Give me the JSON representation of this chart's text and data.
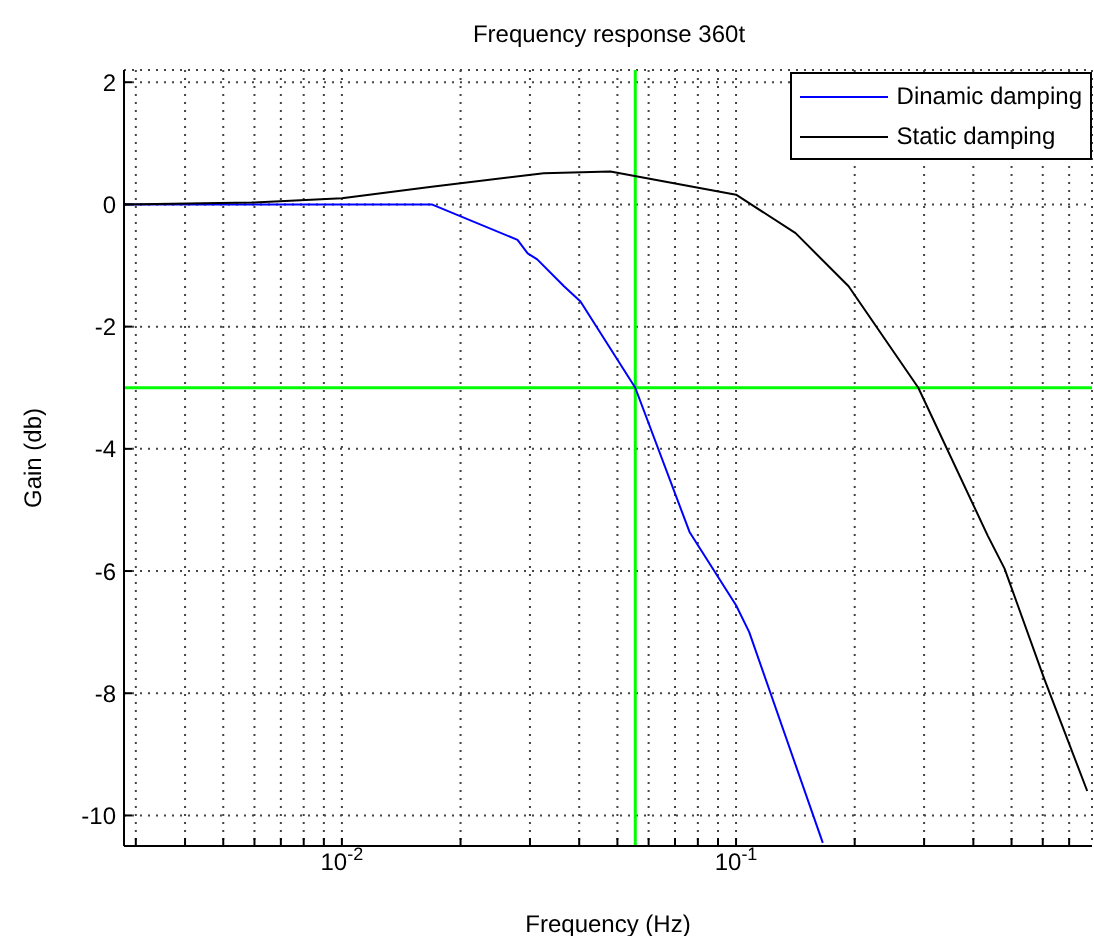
{
  "chart_data": {
    "type": "line",
    "title": "Frequency response 360t",
    "xlabel": "Frequency (Hz)",
    "ylabel": "Gain (db)",
    "log": "x",
    "xlim": [
      0.0028,
      0.8
    ],
    "ylim": [
      -10.5,
      2.2
    ],
    "xticks": [
      {
        "value": 0.003,
        "label": null
      },
      {
        "value": 0.004,
        "label": null
      },
      {
        "value": 0.005,
        "label": null
      },
      {
        "value": 0.006,
        "label": null
      },
      {
        "value": 0.007,
        "label": null
      },
      {
        "value": 0.008,
        "label": null
      },
      {
        "value": 0.009,
        "label": null
      },
      {
        "value": 0.01,
        "label": "10$^{-2}$"
      },
      {
        "value": 0.02,
        "label": null
      },
      {
        "value": 0.03,
        "label": null
      },
      {
        "value": 0.04,
        "label": null
      },
      {
        "value": 0.05,
        "label": null
      },
      {
        "value": 0.06,
        "label": null
      },
      {
        "value": 0.07,
        "label": null
      },
      {
        "value": 0.08,
        "label": null
      },
      {
        "value": 0.09,
        "label": null
      },
      {
        "value": 0.1,
        "label": "10$^{-1}$"
      },
      {
        "value": 0.2,
        "label": null
      },
      {
        "value": 0.3,
        "label": null
      },
      {
        "value": 0.4,
        "label": null
      },
      {
        "value": 0.5,
        "label": null
      },
      {
        "value": 0.6,
        "label": null
      },
      {
        "value": 0.7,
        "label": null
      }
    ],
    "yticks": [
      -10,
      -8,
      -6,
      -4,
      -2,
      0,
      2
    ],
    "grid": true,
    "legend": "top right",
    "series": [
      {
        "name": "Dinamic damping",
        "color": "#0000ff",
        "x": [
          0.0028,
          0.0169,
          0.0279,
          0.0296,
          0.0313,
          0.0366,
          0.0403,
          0.0555,
          0.0762,
          0.1,
          0.108,
          0.166
        ],
        "values": [
          0,
          0,
          -0.58,
          -0.8,
          -0.9,
          -1.34,
          -1.59,
          -3,
          -5.36,
          -6.56,
          -7,
          -10.45
        ]
      },
      {
        "name": "Static damping",
        "color": "#000000",
        "x": [
          0.0028,
          0.0059,
          0.01,
          0.0169,
          0.0325,
          0.048,
          0.1,
          0.1416,
          0.193,
          0.29,
          0.435,
          0.48,
          0.605,
          0.778
        ],
        "values": [
          0,
          0.03,
          0.1,
          0.29,
          0.51,
          0.54,
          0.16,
          -0.47,
          -1.34,
          -3,
          -5.42,
          -5.96,
          -7.76,
          -9.6
        ]
      }
    ],
    "ref_lines": [
      {
        "axis": "y",
        "value": -3,
        "color": "#00ff00"
      },
      {
        "axis": "x",
        "value": 0.0555,
        "color": "#00ff00"
      }
    ]
  }
}
